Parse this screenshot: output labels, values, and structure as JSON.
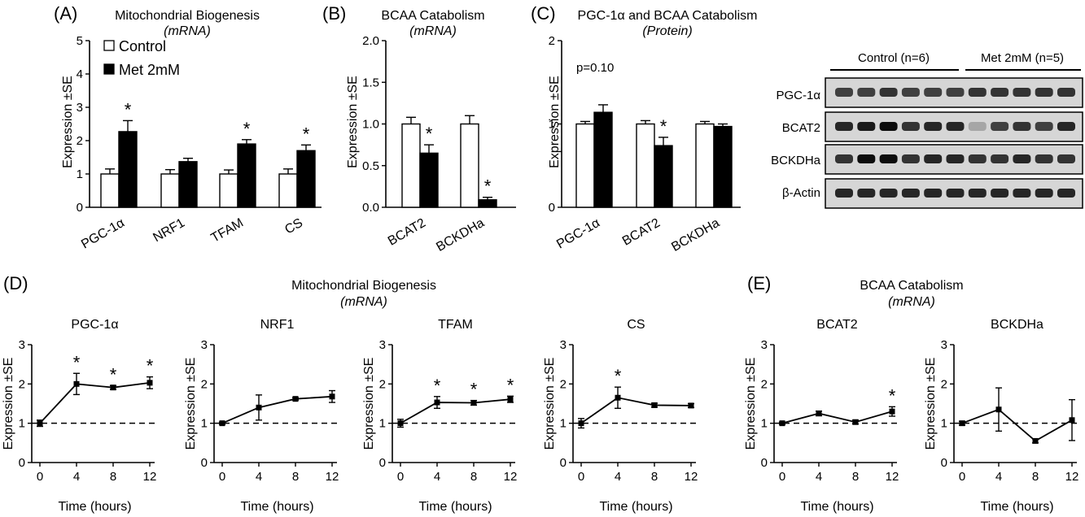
{
  "panel_letters": {
    "A": "(A)",
    "B": "(B)",
    "C": "(C)",
    "D": "(D)",
    "E": "(E)"
  },
  "ylabel": "Expression ±SE",
  "time_xlabel": "Time (hours)",
  "legend": {
    "control": "Control",
    "met": "Met 2mM"
  },
  "colors": {
    "control_fill": "#ffffff",
    "met_fill": "#000000",
    "line": "#000000"
  },
  "top_titles": {
    "A": {
      "line1": "Mitochondrial Biogenesis",
      "line2": "(mRNA)"
    },
    "B": {
      "line1": "BCAA Catabolism",
      "line2": "(mRNA)"
    },
    "C": {
      "line1": "PGC-1α and BCAA Catabolism",
      "line2": "(Protein)"
    }
  },
  "annotation_C": "p=0.10",
  "blot": {
    "groups": [
      "Control (n=6)",
      "Met 2mM (n=5)"
    ],
    "rows": [
      "PGC-1α",
      "BCAT2",
      "BCKDHa",
      "β-Actin"
    ],
    "intensity": [
      [
        0.75,
        0.75,
        0.8,
        0.75,
        0.75,
        0.75,
        0.8,
        0.8,
        0.8,
        0.8,
        0.8
      ],
      [
        0.85,
        0.9,
        0.95,
        0.8,
        0.85,
        0.85,
        0.35,
        0.75,
        0.8,
        0.75,
        0.85
      ],
      [
        0.8,
        0.95,
        0.95,
        0.8,
        0.85,
        0.85,
        0.8,
        0.8,
        0.85,
        0.8,
        0.8
      ],
      [
        0.85,
        0.85,
        0.85,
        0.85,
        0.85,
        0.85,
        0.85,
        0.85,
        0.85,
        0.85,
        0.85
      ]
    ]
  },
  "bottom_titles": {
    "D": {
      "line1": "Mitochondrial Biogenesis",
      "line2": "(mRNA)"
    },
    "E": {
      "line1": "BCAA Catabolism",
      "line2": "(mRNA)"
    }
  },
  "chart_data": [
    {
      "id": "A",
      "type": "bar",
      "categories": [
        "PGC-1α",
        "NRF1",
        "TFAM",
        "CS"
      ],
      "series": [
        {
          "name": "Control",
          "values": [
            1.0,
            1.0,
            1.0,
            1.0
          ],
          "errors": [
            0.15,
            0.13,
            0.12,
            0.15
          ]
        },
        {
          "name": "Met 2mM",
          "values": [
            2.27,
            1.37,
            1.9,
            1.7
          ],
          "errors": [
            0.33,
            0.1,
            0.13,
            0.17
          ]
        }
      ],
      "significant": [
        true,
        false,
        true,
        true
      ],
      "ylim": [
        0,
        5
      ],
      "yticks": [
        0,
        1,
        2,
        3,
        4,
        5
      ],
      "ytick_labels": [
        "0",
        "1",
        "2",
        "3",
        "4",
        "5"
      ]
    },
    {
      "id": "B",
      "type": "bar",
      "categories": [
        "BCAT2",
        "BCKDHa"
      ],
      "series": [
        {
          "name": "Control",
          "values": [
            1.0,
            1.0
          ],
          "errors": [
            0.08,
            0.1
          ]
        },
        {
          "name": "Met 2mM",
          "values": [
            0.65,
            0.09
          ],
          "errors": [
            0.1,
            0.03
          ]
        }
      ],
      "significant": [
        true,
        true
      ],
      "ylim": [
        0,
        2.0
      ],
      "yticks": [
        0,
        0.5,
        1,
        1.5,
        2
      ],
      "ytick_labels": [
        "0.0",
        "0.5",
        "1.0",
        "1.5",
        "2.0"
      ]
    },
    {
      "id": "C",
      "type": "bar",
      "categories": [
        "PGC-1α",
        "BCAT2",
        "BCKDHa"
      ],
      "series": [
        {
          "name": "Control",
          "values": [
            1.0,
            1.0,
            1.0
          ],
          "errors": [
            0.03,
            0.04,
            0.03
          ]
        },
        {
          "name": "Met 2mM",
          "values": [
            1.14,
            0.74,
            0.97
          ],
          "errors": [
            0.09,
            0.1,
            0.03
          ]
        }
      ],
      "significant": [
        false,
        true,
        false
      ],
      "ylim": [
        0,
        2
      ],
      "yticks": [
        0,
        1,
        2
      ],
      "ytick_labels": [
        "0",
        "1",
        "2"
      ]
    },
    {
      "id": "D1",
      "type": "line",
      "title": "PGC-1α",
      "x": [
        0,
        4,
        8,
        12
      ],
      "y": [
        1.0,
        2.0,
        1.91,
        2.03
      ],
      "errors": [
        0.08,
        0.27,
        0.05,
        0.15
      ],
      "significant": [
        false,
        true,
        true,
        true
      ],
      "xlim": [
        0,
        12
      ],
      "ylim": [
        0,
        3
      ]
    },
    {
      "id": "D2",
      "type": "line",
      "title": "NRF1",
      "x": [
        0,
        4,
        8,
        12
      ],
      "y": [
        1.0,
        1.4,
        1.62,
        1.68
      ],
      "errors": [
        0.03,
        0.32,
        0.03,
        0.15
      ],
      "significant": [
        false,
        false,
        false,
        false
      ],
      "xlim": [
        0,
        12
      ],
      "ylim": [
        0,
        3
      ]
    },
    {
      "id": "D3",
      "type": "line",
      "title": "TFAM",
      "x": [
        0,
        4,
        8,
        12
      ],
      "y": [
        1.0,
        1.53,
        1.52,
        1.61
      ],
      "errors": [
        0.1,
        0.15,
        0.06,
        0.08
      ],
      "significant": [
        false,
        true,
        true,
        true
      ],
      "xlim": [
        0,
        12
      ],
      "ylim": [
        0,
        3
      ]
    },
    {
      "id": "D4",
      "type": "line",
      "title": "CS",
      "x": [
        0,
        4,
        8,
        12
      ],
      "y": [
        1.0,
        1.65,
        1.46,
        1.45
      ],
      "errors": [
        0.12,
        0.27,
        0.05,
        0.05
      ],
      "significant": [
        false,
        true,
        false,
        false
      ],
      "xlim": [
        0,
        12
      ],
      "ylim": [
        0,
        3
      ]
    },
    {
      "id": "E1",
      "type": "line",
      "title": "BCAT2",
      "x": [
        0,
        4,
        8,
        12
      ],
      "y": [
        1.0,
        1.25,
        1.03,
        1.3
      ],
      "errors": [
        0.03,
        0.06,
        0.05,
        0.12
      ],
      "significant": [
        false,
        false,
        false,
        true
      ],
      "xlim": [
        0,
        12
      ],
      "ylim": [
        0,
        3
      ]
    },
    {
      "id": "E2",
      "type": "line",
      "title": "BCKDHa",
      "x": [
        0,
        4,
        8,
        12
      ],
      "y": [
        1.0,
        1.35,
        0.55,
        1.08
      ],
      "errors": [
        0.05,
        0.55,
        0.05,
        0.52
      ],
      "significant": [
        false,
        false,
        false,
        false
      ],
      "xlim": [
        0,
        12
      ],
      "ylim": [
        0,
        3
      ]
    }
  ]
}
